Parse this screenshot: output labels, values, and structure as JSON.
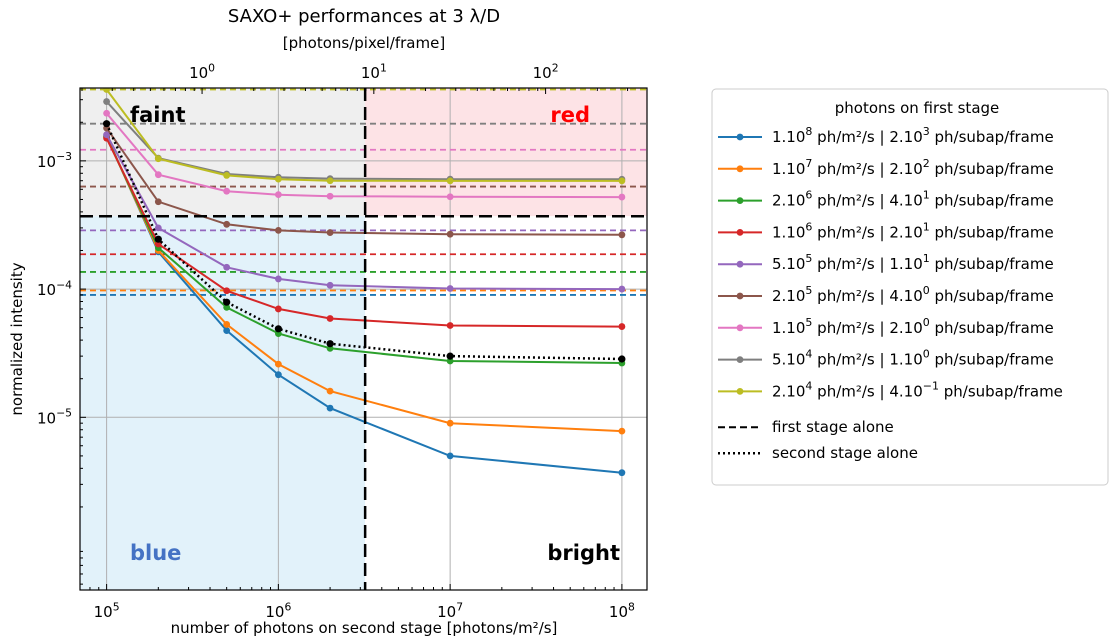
{
  "chart_data": {
    "type": "line",
    "title": "SAXO+ performances at 3 λ/D",
    "top_axis_label": "[photons/pixel/frame]",
    "top_ticks": [
      {
        "base": "10",
        "exp": "0"
      },
      {
        "base": "10",
        "exp": "1"
      },
      {
        "base": "10",
        "exp": "2"
      }
    ],
    "top_tick_values": [
      1,
      10,
      100
    ],
    "xlabel": "number of photons on second stage [photons/m²/s]",
    "ylabel": "normalized intensity",
    "xscale": "log",
    "yscale": "log",
    "xlim": [
      70000,
      140000000
    ],
    "ylim": [
      4.5e-07,
      0.0037
    ],
    "x_ticks": [
      {
        "base": "10",
        "exp": "5"
      },
      {
        "base": "10",
        "exp": "6"
      },
      {
        "base": "10",
        "exp": "7"
      },
      {
        "base": "10",
        "exp": "8"
      }
    ],
    "x_tick_values": [
      100000,
      1000000,
      10000000,
      100000000
    ],
    "y_ticks": [
      {
        "base": "10",
        "exp": "−3"
      },
      {
        "base": "10",
        "exp": "−4"
      },
      {
        "base": "10",
        "exp": "−5"
      }
    ],
    "y_tick_values": [
      0.001,
      0.0001,
      1e-05
    ],
    "grid": true,
    "regions": {
      "faint": "faint",
      "red": "red",
      "blue": "blue",
      "bright": "bright",
      "x_divider": 3200000,
      "y_divider": 0.00037,
      "colors": {
        "faint": "#efefef",
        "red": "#fde3e6",
        "blue": "#e2f2fa",
        "faint_text": "#000000",
        "red_text": "#ff0000",
        "blue_text": "#4472c4",
        "bright_text": "#000000"
      }
    },
    "x": [
      100000,
      200000,
      500000,
      1000000,
      2000000,
      10000000,
      100000000
    ],
    "legend_title": "photons on first stage",
    "legend_position": "outside-right",
    "series": [
      {
        "name_a": "1.10",
        "sup_a": "8",
        "name_b": " ph/m²/s | 2.10",
        "sup_b": "3",
        "name_c": " ph/subap/frame",
        "color": "#1f77b4",
        "values": [
          0.00157,
          0.000195,
          4.75e-05,
          2.15e-05,
          1.18e-05,
          5e-06,
          3.7e-06
        ],
        "first_stage_alone": 9e-05
      },
      {
        "name_a": "1.10",
        "sup_a": "7",
        "name_b": " ph/m²/s | 2.10",
        "sup_b": "2",
        "name_c": " ph/subap/frame",
        "color": "#ff7f0e",
        "values": [
          0.00155,
          0.0002,
          5.3e-05,
          2.6e-05,
          1.6e-05,
          9e-06,
          7.8e-06
        ],
        "first_stage_alone": 9.75e-05
      },
      {
        "name_a": "2.10",
        "sup_a": "6",
        "name_b": " ph/m²/s | 4.10",
        "sup_b": "1",
        "name_c": " ph/subap/frame",
        "color": "#2ca02c",
        "values": [
          0.00153,
          0.00021,
          7.2e-05,
          4.5e-05,
          3.45e-05,
          2.75e-05,
          2.65e-05
        ],
        "first_stage_alone": 0.000136
      },
      {
        "name_a": "1.10",
        "sup_a": "6",
        "name_b": " ph/m²/s | 2.10",
        "sup_b": "1",
        "name_c": " ph/subap/frame",
        "color": "#d62728",
        "values": [
          0.0015,
          0.000225,
          9.7e-05,
          7e-05,
          5.9e-05,
          5.2e-05,
          5.1e-05
        ],
        "first_stage_alone": 0.000187
      },
      {
        "name_a": "5.10",
        "sup_a": "5",
        "name_b": " ph/m²/s | 1.10",
        "sup_b": "1",
        "name_c": " ph/subap/frame",
        "color": "#9467bd",
        "values": [
          0.0016,
          0.0003,
          0.000148,
          0.00012,
          0.000107,
          0.000101,
          0.0001
        ],
        "first_stage_alone": 0.000287
      },
      {
        "name_a": "2.10",
        "sup_a": "5",
        "name_b": " ph/m²/s | 4.10",
        "sup_b": "0",
        "name_c": " ph/subap/frame",
        "color": "#8c564b",
        "values": [
          0.0018,
          0.00048,
          0.00032,
          0.000287,
          0.000276,
          0.000268,
          0.000265
        ],
        "first_stage_alone": 0.00063
      },
      {
        "name_a": "1.10",
        "sup_a": "5",
        "name_b": " ph/m²/s | 2.10",
        "sup_b": "0",
        "name_c": " ph/subap/frame",
        "color": "#e377c2",
        "values": [
          0.00235,
          0.00078,
          0.00058,
          0.000545,
          0.00053,
          0.000525,
          0.000522
        ],
        "first_stage_alone": 0.00122
      },
      {
        "name_a": "5.10",
        "sup_a": "4",
        "name_b": " ph/m²/s | 1.10",
        "sup_b": "0",
        "name_c": " ph/subap/frame",
        "color": "#7f7f7f",
        "values": [
          0.0029,
          0.00105,
          0.00079,
          0.000745,
          0.000727,
          0.00072,
          0.000718
        ],
        "first_stage_alone": 0.00195
      },
      {
        "name_a": "2.10",
        "sup_a": "4",
        "name_b": " ph/m²/s | 4.10",
        "sup_b": "−1",
        "name_c": " ph/subap/frame",
        "color": "#bcbd22",
        "values": [
          0.0036,
          0.00104,
          0.00077,
          0.00072,
          0.0007,
          0.000698,
          0.000698
        ],
        "first_stage_alone": 0.0036
      }
    ],
    "second_stage_alone": {
      "name": "second stage alone",
      "color": "#000000",
      "values": [
        0.00195,
        0.000245,
        7.9e-05,
        4.9e-05,
        3.75e-05,
        3e-05,
        2.85e-05
      ]
    },
    "first_stage_alone_label": "first stage alone"
  }
}
